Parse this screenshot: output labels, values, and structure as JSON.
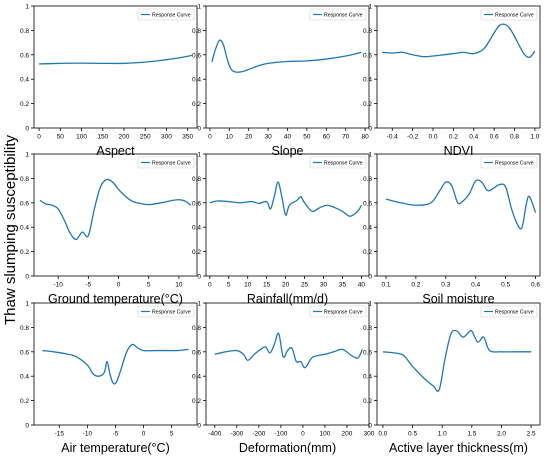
{
  "figure": {
    "ylabel": "Thaw slumping susceptibility"
  },
  "chart_data": [
    {
      "type": "line",
      "xlabel": "Aspect",
      "legend": "top-right",
      "ylim": [
        0,
        1.0
      ],
      "yticks": [
        0,
        0.2,
        0.4,
        0.6,
        0.8,
        1.0
      ],
      "xlim": [
        -12,
        372
      ],
      "xticks": [
        0,
        50,
        100,
        150,
        200,
        250,
        300,
        350
      ],
      "series": [
        {
          "name": "Response Curve",
          "x": [
            0,
            50,
            100,
            150,
            200,
            250,
            300,
            330,
            360
          ],
          "y": [
            0.525,
            0.53,
            0.532,
            0.53,
            0.53,
            0.54,
            0.56,
            0.575,
            0.595
          ]
        }
      ]
    },
    {
      "type": "line",
      "xlabel": "Slope",
      "legend": "top-right",
      "ylim": [
        0,
        1.0
      ],
      "yticks": [
        0,
        0.2,
        0.4,
        0.6,
        0.8,
        1.0
      ],
      "xlim": [
        -2,
        82
      ],
      "xticks": [
        0,
        10,
        20,
        30,
        40,
        50,
        60,
        70,
        80
      ],
      "series": [
        {
          "name": "Response Curve",
          "x": [
            1,
            3,
            5,
            7,
            9,
            11,
            13,
            16,
            20,
            25,
            30,
            40,
            50,
            60,
            70,
            78
          ],
          "y": [
            0.54,
            0.65,
            0.72,
            0.68,
            0.56,
            0.48,
            0.46,
            0.46,
            0.48,
            0.51,
            0.53,
            0.545,
            0.55,
            0.565,
            0.59,
            0.62
          ]
        }
      ]
    },
    {
      "type": "line",
      "xlabel": "NDVI",
      "legend": "top-right",
      "ylim": [
        0,
        1.0
      ],
      "yticks": [
        0,
        0.2,
        0.4,
        0.6,
        0.8,
        1.0
      ],
      "xlim": [
        -0.55,
        1.05
      ],
      "xticks": [
        -0.4,
        -0.2,
        0.0,
        0.2,
        0.4,
        0.6,
        0.8,
        1.0
      ],
      "series": [
        {
          "name": "Response Curve",
          "x": [
            -0.5,
            -0.4,
            -0.3,
            -0.2,
            -0.1,
            0.0,
            0.1,
            0.2,
            0.3,
            0.4,
            0.5,
            0.6,
            0.65,
            0.7,
            0.75,
            0.8,
            0.85,
            0.9,
            0.95,
            1.0
          ],
          "y": [
            0.62,
            0.615,
            0.62,
            0.6,
            0.585,
            0.59,
            0.6,
            0.61,
            0.62,
            0.61,
            0.65,
            0.78,
            0.84,
            0.85,
            0.82,
            0.75,
            0.67,
            0.6,
            0.58,
            0.63
          ]
        }
      ]
    },
    {
      "type": "line",
      "xlabel": "Ground temperature(°C)",
      "legend": "top-right",
      "ylim": [
        0,
        1.0
      ],
      "yticks": [
        0,
        0.2,
        0.4,
        0.6,
        0.8,
        1.0
      ],
      "xlim": [
        -14,
        13
      ],
      "xticks": [
        -10,
        -5,
        0,
        5,
        10
      ],
      "series": [
        {
          "name": "Response Curve",
          "x": [
            -13,
            -12,
            -11,
            -10,
            -9,
            -8,
            -7,
            -6,
            -5,
            -4,
            -3,
            -2,
            -1,
            0,
            1,
            2,
            3,
            5,
            7,
            9,
            10,
            11,
            12
          ],
          "y": [
            0.62,
            0.59,
            0.58,
            0.55,
            0.46,
            0.35,
            0.3,
            0.36,
            0.33,
            0.55,
            0.73,
            0.79,
            0.77,
            0.71,
            0.66,
            0.62,
            0.6,
            0.585,
            0.6,
            0.62,
            0.625,
            0.615,
            0.58
          ]
        }
      ]
    },
    {
      "type": "line",
      "xlabel": "Rainfall(mm/d)",
      "legend": "top-right",
      "ylim": [
        0,
        1.0
      ],
      "yticks": [
        0,
        0.2,
        0.4,
        0.6,
        0.8,
        1.0
      ],
      "xlim": [
        -1,
        42
      ],
      "xticks": [
        0,
        5,
        10,
        15,
        20,
        25,
        30,
        35,
        40
      ],
      "series": [
        {
          "name": "Response Curve",
          "x": [
            0,
            2,
            5,
            8,
            11,
            13,
            15,
            16,
            17,
            18,
            19,
            20,
            21,
            23,
            24,
            25,
            27,
            29,
            31,
            33,
            35,
            37,
            39,
            40
          ],
          "y": [
            0.6,
            0.615,
            0.61,
            0.6,
            0.61,
            0.595,
            0.61,
            0.55,
            0.65,
            0.77,
            0.65,
            0.5,
            0.58,
            0.62,
            0.65,
            0.6,
            0.53,
            0.56,
            0.58,
            0.56,
            0.53,
            0.49,
            0.53,
            0.58
          ]
        }
      ]
    },
    {
      "type": "line",
      "xlabel": "Soil moisture",
      "legend": "top-right",
      "ylim": [
        0,
        1.0
      ],
      "yticks": [
        0,
        0.2,
        0.4,
        0.6,
        0.8,
        1.0
      ],
      "xlim": [
        0.07,
        0.615
      ],
      "xticks": [
        0.1,
        0.2,
        0.3,
        0.4,
        0.5,
        0.6
      ],
      "series": [
        {
          "name": "Response Curve",
          "x": [
            0.1,
            0.15,
            0.2,
            0.25,
            0.28,
            0.3,
            0.32,
            0.34,
            0.36,
            0.38,
            0.4,
            0.42,
            0.44,
            0.46,
            0.48,
            0.5,
            0.52,
            0.54,
            0.555,
            0.57,
            0.58,
            0.6
          ],
          "y": [
            0.63,
            0.6,
            0.58,
            0.6,
            0.7,
            0.77,
            0.74,
            0.6,
            0.62,
            0.68,
            0.78,
            0.77,
            0.7,
            0.72,
            0.75,
            0.73,
            0.55,
            0.42,
            0.4,
            0.6,
            0.65,
            0.52
          ]
        }
      ]
    },
    {
      "type": "line",
      "xlabel": "Air temperature(°C)",
      "legend": "top-right",
      "ylim": [
        0,
        1.0
      ],
      "yticks": [
        0,
        0.2,
        0.4,
        0.6,
        0.8,
        1.0
      ],
      "xlim": [
        -19.5,
        9.5
      ],
      "xticks": [
        -15,
        -10,
        -5,
        0,
        5
      ],
      "series": [
        {
          "name": "Response Curve",
          "x": [
            -18,
            -16,
            -14,
            -12,
            -10,
            -9,
            -8,
            -7,
            -6.5,
            -6,
            -5.5,
            -5,
            -4.5,
            -4,
            -3,
            -2,
            -1,
            0,
            2,
            4,
            6,
            8
          ],
          "y": [
            0.61,
            0.6,
            0.585,
            0.56,
            0.49,
            0.42,
            0.4,
            0.43,
            0.52,
            0.42,
            0.35,
            0.34,
            0.39,
            0.46,
            0.6,
            0.66,
            0.63,
            0.61,
            0.61,
            0.61,
            0.61,
            0.62
          ]
        }
      ]
    },
    {
      "type": "line",
      "xlabel": "Deformation(mm)",
      "legend": "top-right",
      "ylim": [
        0,
        1.0
      ],
      "yticks": [
        0,
        0.2,
        0.4,
        0.6,
        0.8,
        1.0
      ],
      "xlim": [
        -440,
        300
      ],
      "xticks": [
        -400,
        -300,
        -200,
        -100,
        0,
        100,
        200,
        300
      ],
      "series": [
        {
          "name": "Response Curve",
          "x": [
            -400,
            -350,
            -300,
            -270,
            -250,
            -220,
            -200,
            -170,
            -150,
            -130,
            -110,
            -90,
            -70,
            -50,
            -30,
            -10,
            10,
            40,
            70,
            100,
            140,
            180,
            220,
            250,
            270
          ],
          "y": [
            0.58,
            0.6,
            0.61,
            0.58,
            0.53,
            0.58,
            0.61,
            0.64,
            0.59,
            0.66,
            0.75,
            0.56,
            0.61,
            0.63,
            0.52,
            0.52,
            0.47,
            0.55,
            0.57,
            0.58,
            0.6,
            0.62,
            0.57,
            0.55,
            0.62
          ]
        }
      ]
    },
    {
      "type": "line",
      "xlabel": "Active layer thickness(m)",
      "legend": "top-right",
      "ylim": [
        0,
        1.0
      ],
      "yticks": [
        0,
        0.2,
        0.4,
        0.6,
        0.8,
        1.0
      ],
      "xlim": [
        -0.1,
        2.65
      ],
      "xticks": [
        0.0,
        0.5,
        1.0,
        1.5,
        2.0,
        2.5
      ],
      "series": [
        {
          "name": "Response Curve",
          "x": [
            0.0,
            0.2,
            0.35,
            0.5,
            0.7,
            0.85,
            0.95,
            1.05,
            1.15,
            1.25,
            1.35,
            1.45,
            1.5,
            1.6,
            1.7,
            1.8,
            2.0,
            2.2,
            2.5
          ],
          "y": [
            0.6,
            0.59,
            0.57,
            0.48,
            0.38,
            0.32,
            0.29,
            0.55,
            0.75,
            0.77,
            0.72,
            0.76,
            0.77,
            0.68,
            0.72,
            0.61,
            0.6,
            0.6,
            0.6
          ]
        }
      ]
    }
  ]
}
